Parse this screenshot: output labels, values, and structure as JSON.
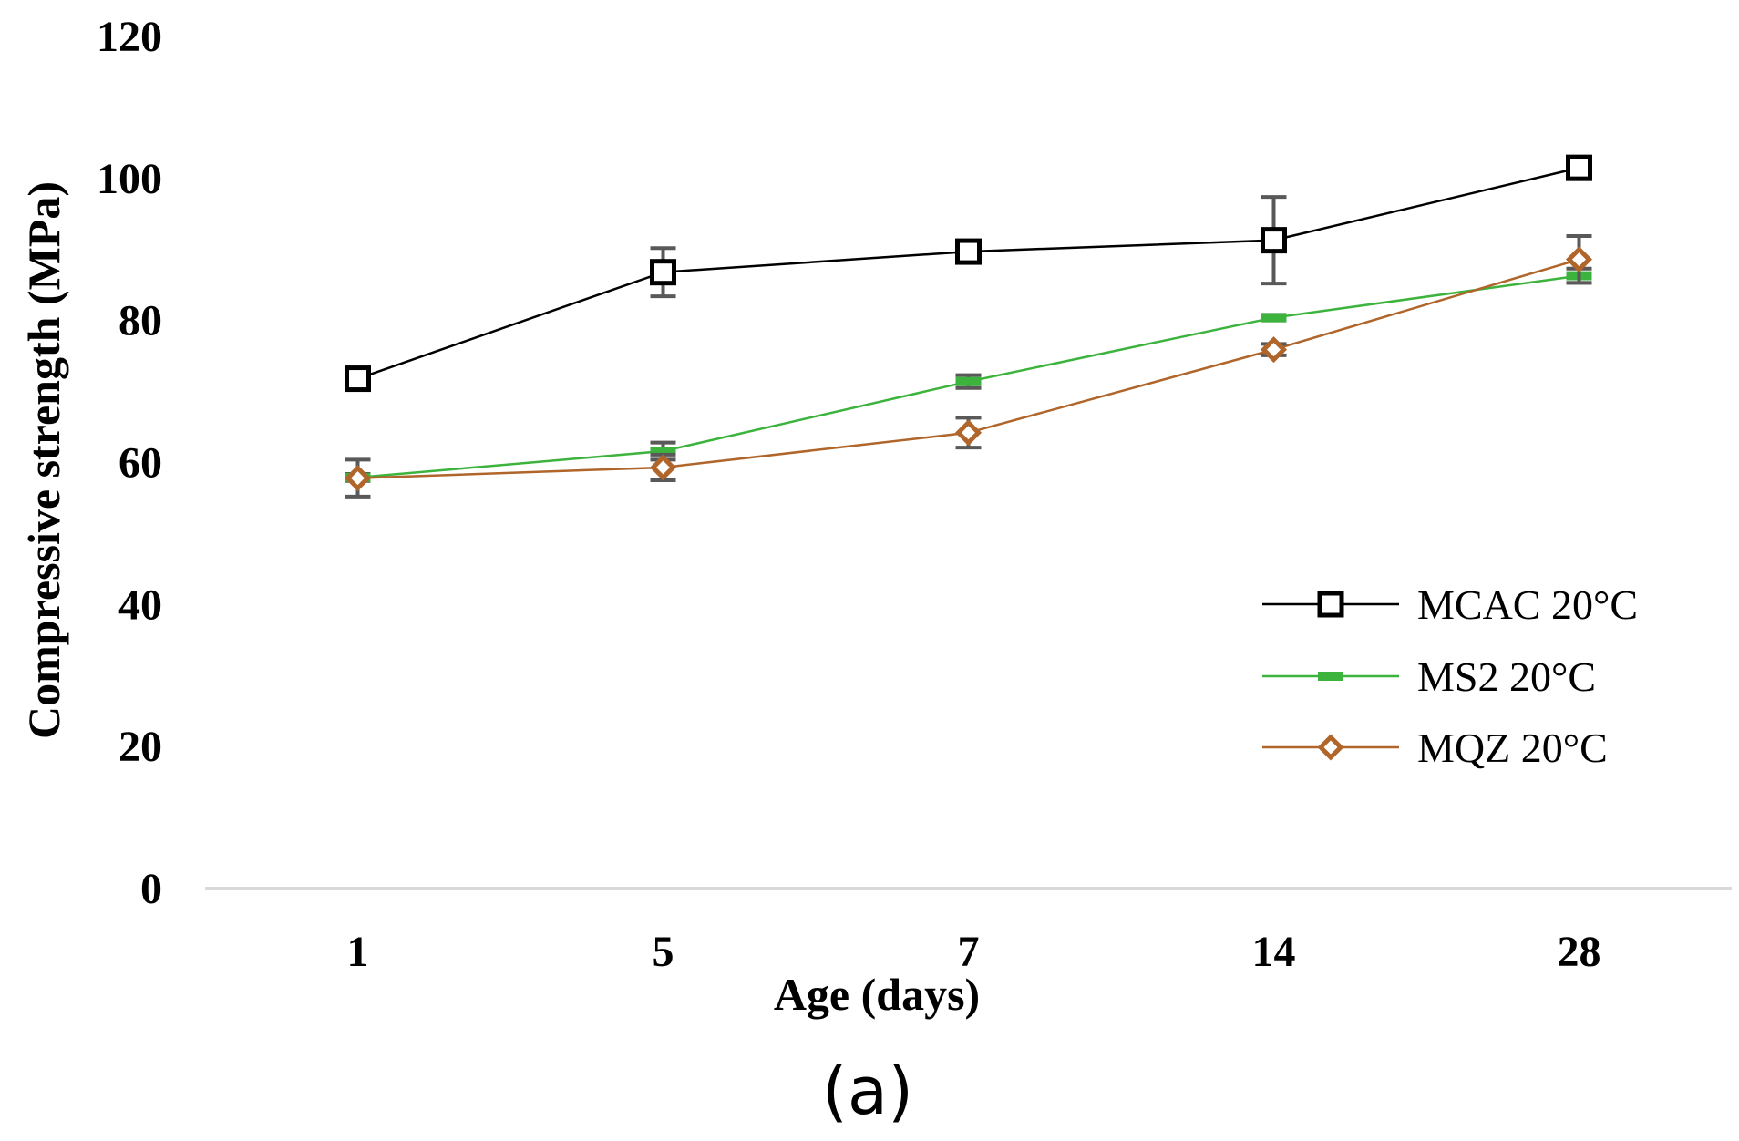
{
  "chart_data": {
    "type": "line",
    "title": "",
    "panel_label": "(a)",
    "xlabel": "Age (days)",
    "ylabel": "Compressive strength (MPa)",
    "categories": [
      "1",
      "5",
      "7",
      "14",
      "28"
    ],
    "ylim": [
      0,
      120
    ],
    "yticks": [
      0,
      20,
      40,
      60,
      80,
      100,
      120
    ],
    "grid": false,
    "legend_position": "right-middle",
    "series": [
      {
        "name": "MCAC 20°C",
        "color": "#000000",
        "marker": "square-open",
        "values": [
          71.8,
          86.8,
          89.7,
          91.3,
          101.5
        ],
        "errors": [
          0.8,
          3.4,
          0.8,
          6.1,
          0.8
        ]
      },
      {
        "name": "MS2 20°C",
        "color": "#3cb33c",
        "marker": "dash",
        "values": [
          57.9,
          61.6,
          71.4,
          80.4,
          86.3
        ],
        "errors": [
          0.5,
          1.2,
          0.9,
          0.4,
          1.0
        ]
      },
      {
        "name": "MQZ 20°C",
        "color": "#b0652a",
        "marker": "diamond-open",
        "values": [
          57.8,
          59.3,
          64.2,
          75.9,
          88.6
        ],
        "errors": [
          2.6,
          1.8,
          2.1,
          0.8,
          3.3
        ]
      }
    ],
    "errorbar_color": "#595959",
    "axis_color": "#d9d9d9"
  }
}
